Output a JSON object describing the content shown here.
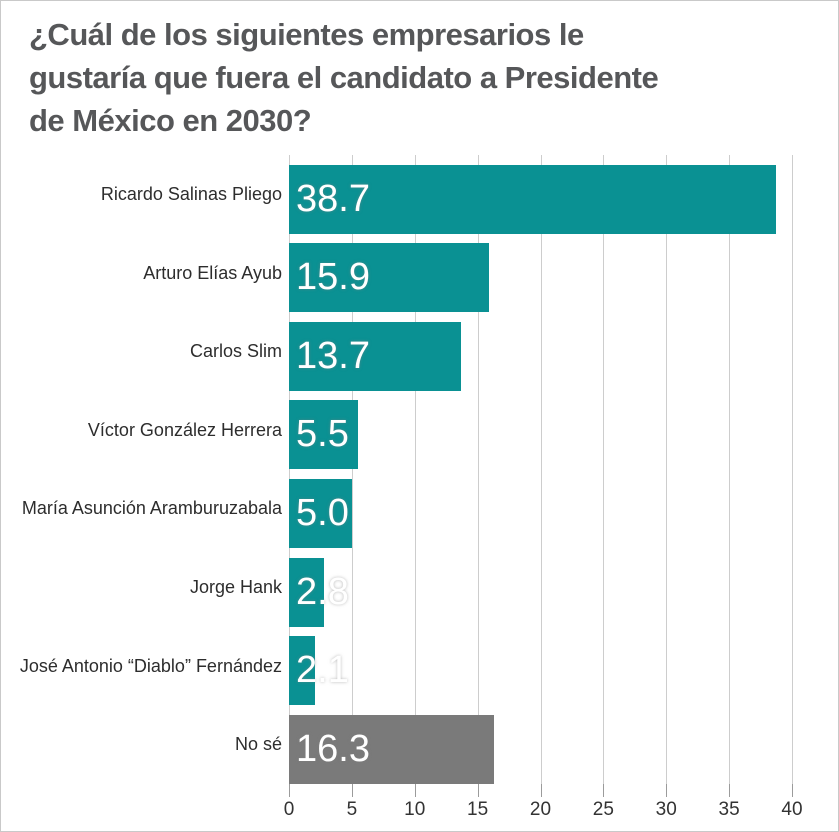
{
  "title_lines": [
    "¿Cuál de los siguientes empresarios le",
    "gustaría que fuera el candidato a Presidente",
    "de México en 2030?"
  ],
  "chart_data": {
    "type": "bar",
    "orientation": "horizontal",
    "title": "¿Cuál de los siguientes empresarios le gustaría que fuera el candidato a Presidente de México en 2030?",
    "categories": [
      "Ricardo Salinas Pliego",
      "Arturo Elías Ayub",
      "Carlos Slim",
      "Víctor González Herrera",
      "María Asunción Aramburuzabala",
      "Jorge Hank",
      "José Antonio “Diablo” Fernández",
      "No sé"
    ],
    "values": [
      38.7,
      15.9,
      13.7,
      5.5,
      5.0,
      2.8,
      2.1,
      16.3
    ],
    "value_labels": [
      "38.7",
      "15.9",
      "13.7",
      "5.5",
      "5.0",
      "2.8",
      "2.1",
      "16.3"
    ],
    "bar_colors": [
      "#0a9193",
      "#0a9193",
      "#0a9193",
      "#0a9193",
      "#0a9193",
      "#0a9193",
      "#0a9193",
      "#7a7a7a"
    ],
    "x_ticks": [
      0,
      5,
      10,
      15,
      20,
      25,
      30,
      35,
      40
    ],
    "xlim": [
      0,
      40
    ],
    "xlabel": "",
    "ylabel": "",
    "grid": "vertical",
    "legend": "none",
    "colors": {
      "primary": "#0a9193",
      "no_se_gray": "#7a7a7a",
      "gridline": "#cdcdcd",
      "title_text": "#565759"
    }
  }
}
